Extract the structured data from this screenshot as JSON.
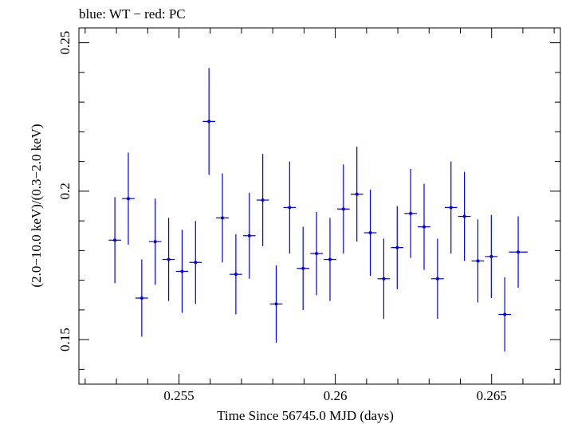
{
  "chart_data": {
    "type": "scatter",
    "title": "blue: WT − red: PC",
    "xlabel": "Time Since 56745.0 MJD (days)",
    "ylabel": "(2.0−10.0 keV)/(0.3−2.0 keV)",
    "xlim": [
      0.2518,
      0.2672
    ],
    "ylim": [
      0.135,
      0.255
    ],
    "x_ticks": [
      0.255,
      0.26,
      0.265
    ],
    "x_tick_labels": [
      "0.255",
      "0.26",
      "0.265"
    ],
    "y_ticks": [
      0.15,
      0.2,
      0.25
    ],
    "y_tick_labels": [
      "0.15",
      "0.2",
      "0.25"
    ],
    "grid": false,
    "colors": {
      "series": "#0000ee",
      "axes": "#000000",
      "background": "#ffffff"
    },
    "series": [
      {
        "points": [
          {
            "x": 0.25295,
            "y": 0.1835,
            "xerr": 0.0002,
            "yerr": 0.0145
          },
          {
            "x": 0.25338,
            "y": 0.1975,
            "xerr": 0.0002,
            "yerr": 0.0155
          },
          {
            "x": 0.25381,
            "y": 0.164,
            "xerr": 0.0002,
            "yerr": 0.013
          },
          {
            "x": 0.25424,
            "y": 0.183,
            "xerr": 0.0002,
            "yerr": 0.0145
          },
          {
            "x": 0.25467,
            "y": 0.177,
            "xerr": 0.0002,
            "yerr": 0.014
          },
          {
            "x": 0.2551,
            "y": 0.173,
            "xerr": 0.0002,
            "yerr": 0.014
          },
          {
            "x": 0.25553,
            "y": 0.176,
            "xerr": 0.0002,
            "yerr": 0.014
          },
          {
            "x": 0.25596,
            "y": 0.2235,
            "xerr": 0.0002,
            "yerr": 0.018
          },
          {
            "x": 0.25639,
            "y": 0.191,
            "xerr": 0.0002,
            "yerr": 0.015
          },
          {
            "x": 0.25682,
            "y": 0.172,
            "xerr": 0.0002,
            "yerr": 0.0135
          },
          {
            "x": 0.25725,
            "y": 0.185,
            "xerr": 0.0002,
            "yerr": 0.0145
          },
          {
            "x": 0.25768,
            "y": 0.197,
            "xerr": 0.0002,
            "yerr": 0.0155
          },
          {
            "x": 0.25811,
            "y": 0.162,
            "xerr": 0.0002,
            "yerr": 0.013
          },
          {
            "x": 0.25854,
            "y": 0.1945,
            "xerr": 0.0002,
            "yerr": 0.0155
          },
          {
            "x": 0.25897,
            "y": 0.174,
            "xerr": 0.0002,
            "yerr": 0.014
          },
          {
            "x": 0.2594,
            "y": 0.179,
            "xerr": 0.0002,
            "yerr": 0.014
          },
          {
            "x": 0.25983,
            "y": 0.177,
            "xerr": 0.0002,
            "yerr": 0.014
          },
          {
            "x": 0.26026,
            "y": 0.194,
            "xerr": 0.0002,
            "yerr": 0.015
          },
          {
            "x": 0.26069,
            "y": 0.199,
            "xerr": 0.0002,
            "yerr": 0.016
          },
          {
            "x": 0.26112,
            "y": 0.186,
            "xerr": 0.0002,
            "yerr": 0.0145
          },
          {
            "x": 0.26155,
            "y": 0.1705,
            "xerr": 0.0002,
            "yerr": 0.0135
          },
          {
            "x": 0.26198,
            "y": 0.181,
            "xerr": 0.0002,
            "yerr": 0.014
          },
          {
            "x": 0.26241,
            "y": 0.1925,
            "xerr": 0.0002,
            "yerr": 0.015
          },
          {
            "x": 0.26284,
            "y": 0.188,
            "xerr": 0.0002,
            "yerr": 0.0145
          },
          {
            "x": 0.26327,
            "y": 0.1705,
            "xerr": 0.0002,
            "yerr": 0.0135
          },
          {
            "x": 0.2637,
            "y": 0.1945,
            "xerr": 0.0002,
            "yerr": 0.0155
          },
          {
            "x": 0.26413,
            "y": 0.1915,
            "xerr": 0.0002,
            "yerr": 0.015
          },
          {
            "x": 0.26456,
            "y": 0.1765,
            "xerr": 0.0002,
            "yerr": 0.014
          },
          {
            "x": 0.26499,
            "y": 0.178,
            "xerr": 0.0002,
            "yerr": 0.014
          },
          {
            "x": 0.26542,
            "y": 0.1585,
            "xerr": 0.0002,
            "yerr": 0.0125
          },
          {
            "x": 0.26585,
            "y": 0.1795,
            "xerr": 0.0003,
            "yerr": 0.012
          }
        ]
      }
    ]
  }
}
